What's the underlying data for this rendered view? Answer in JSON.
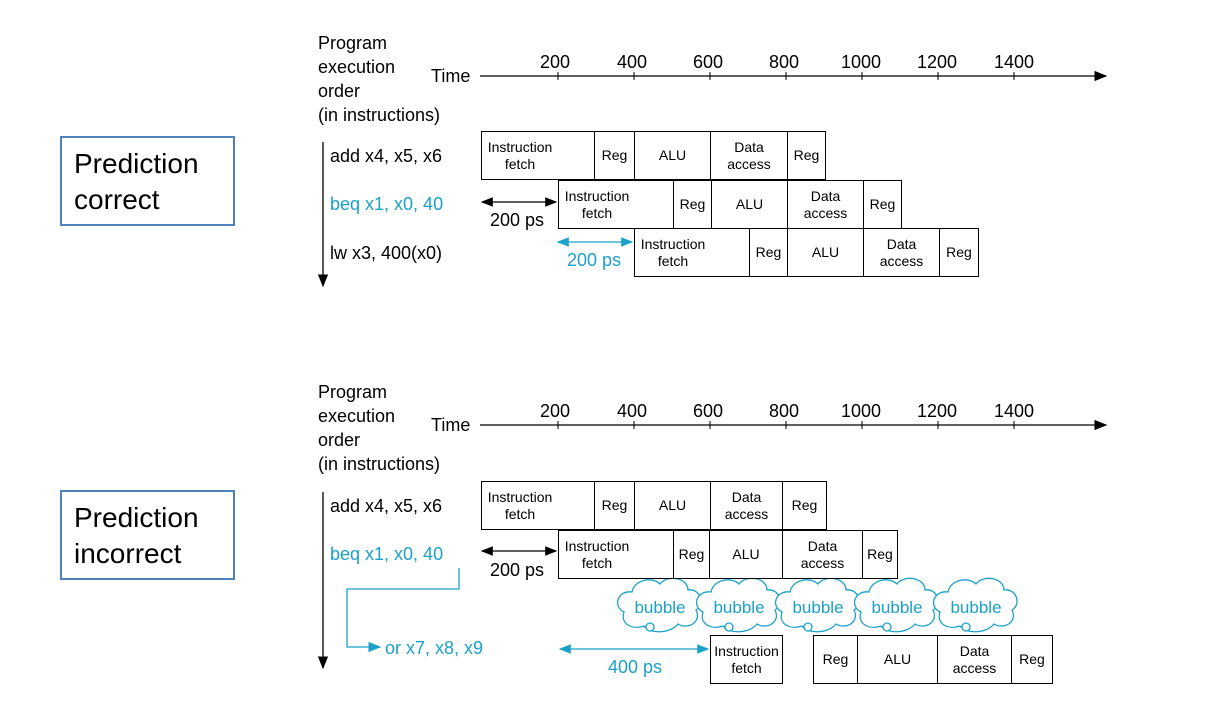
{
  "colors": {
    "accent": "#1ba1c9",
    "box_border": "#4f81bd"
  },
  "header": {
    "order_lines": [
      "Program",
      "execution",
      "order",
      "(in instructions)"
    ],
    "time_label": "Time",
    "ticks": [
      "200",
      "400",
      "600",
      "800",
      "1000",
      "1200",
      "1400"
    ]
  },
  "stages": {
    "if": [
      "Instruction",
      "fetch"
    ],
    "reg": "Reg",
    "alu": "ALU",
    "mem": [
      "Data",
      "access"
    ]
  },
  "correct": {
    "box_lines": [
      "Prediction",
      "correct"
    ],
    "instructions": [
      "add x4, x5, x6",
      "beq x1, x0, 40",
      "lw x3, 400(x0)"
    ],
    "delay1": "200 ps",
    "delay2": "200 ps"
  },
  "incorrect": {
    "box_lines": [
      "Prediction",
      "incorrect"
    ],
    "instructions": [
      "add x4, x5, x6",
      "beq x1, x0, 40",
      "or x7, x8, x9"
    ],
    "delay1": "200 ps",
    "delay2": "400 ps",
    "bubble_label": "bubble",
    "bubble_count": 5
  }
}
